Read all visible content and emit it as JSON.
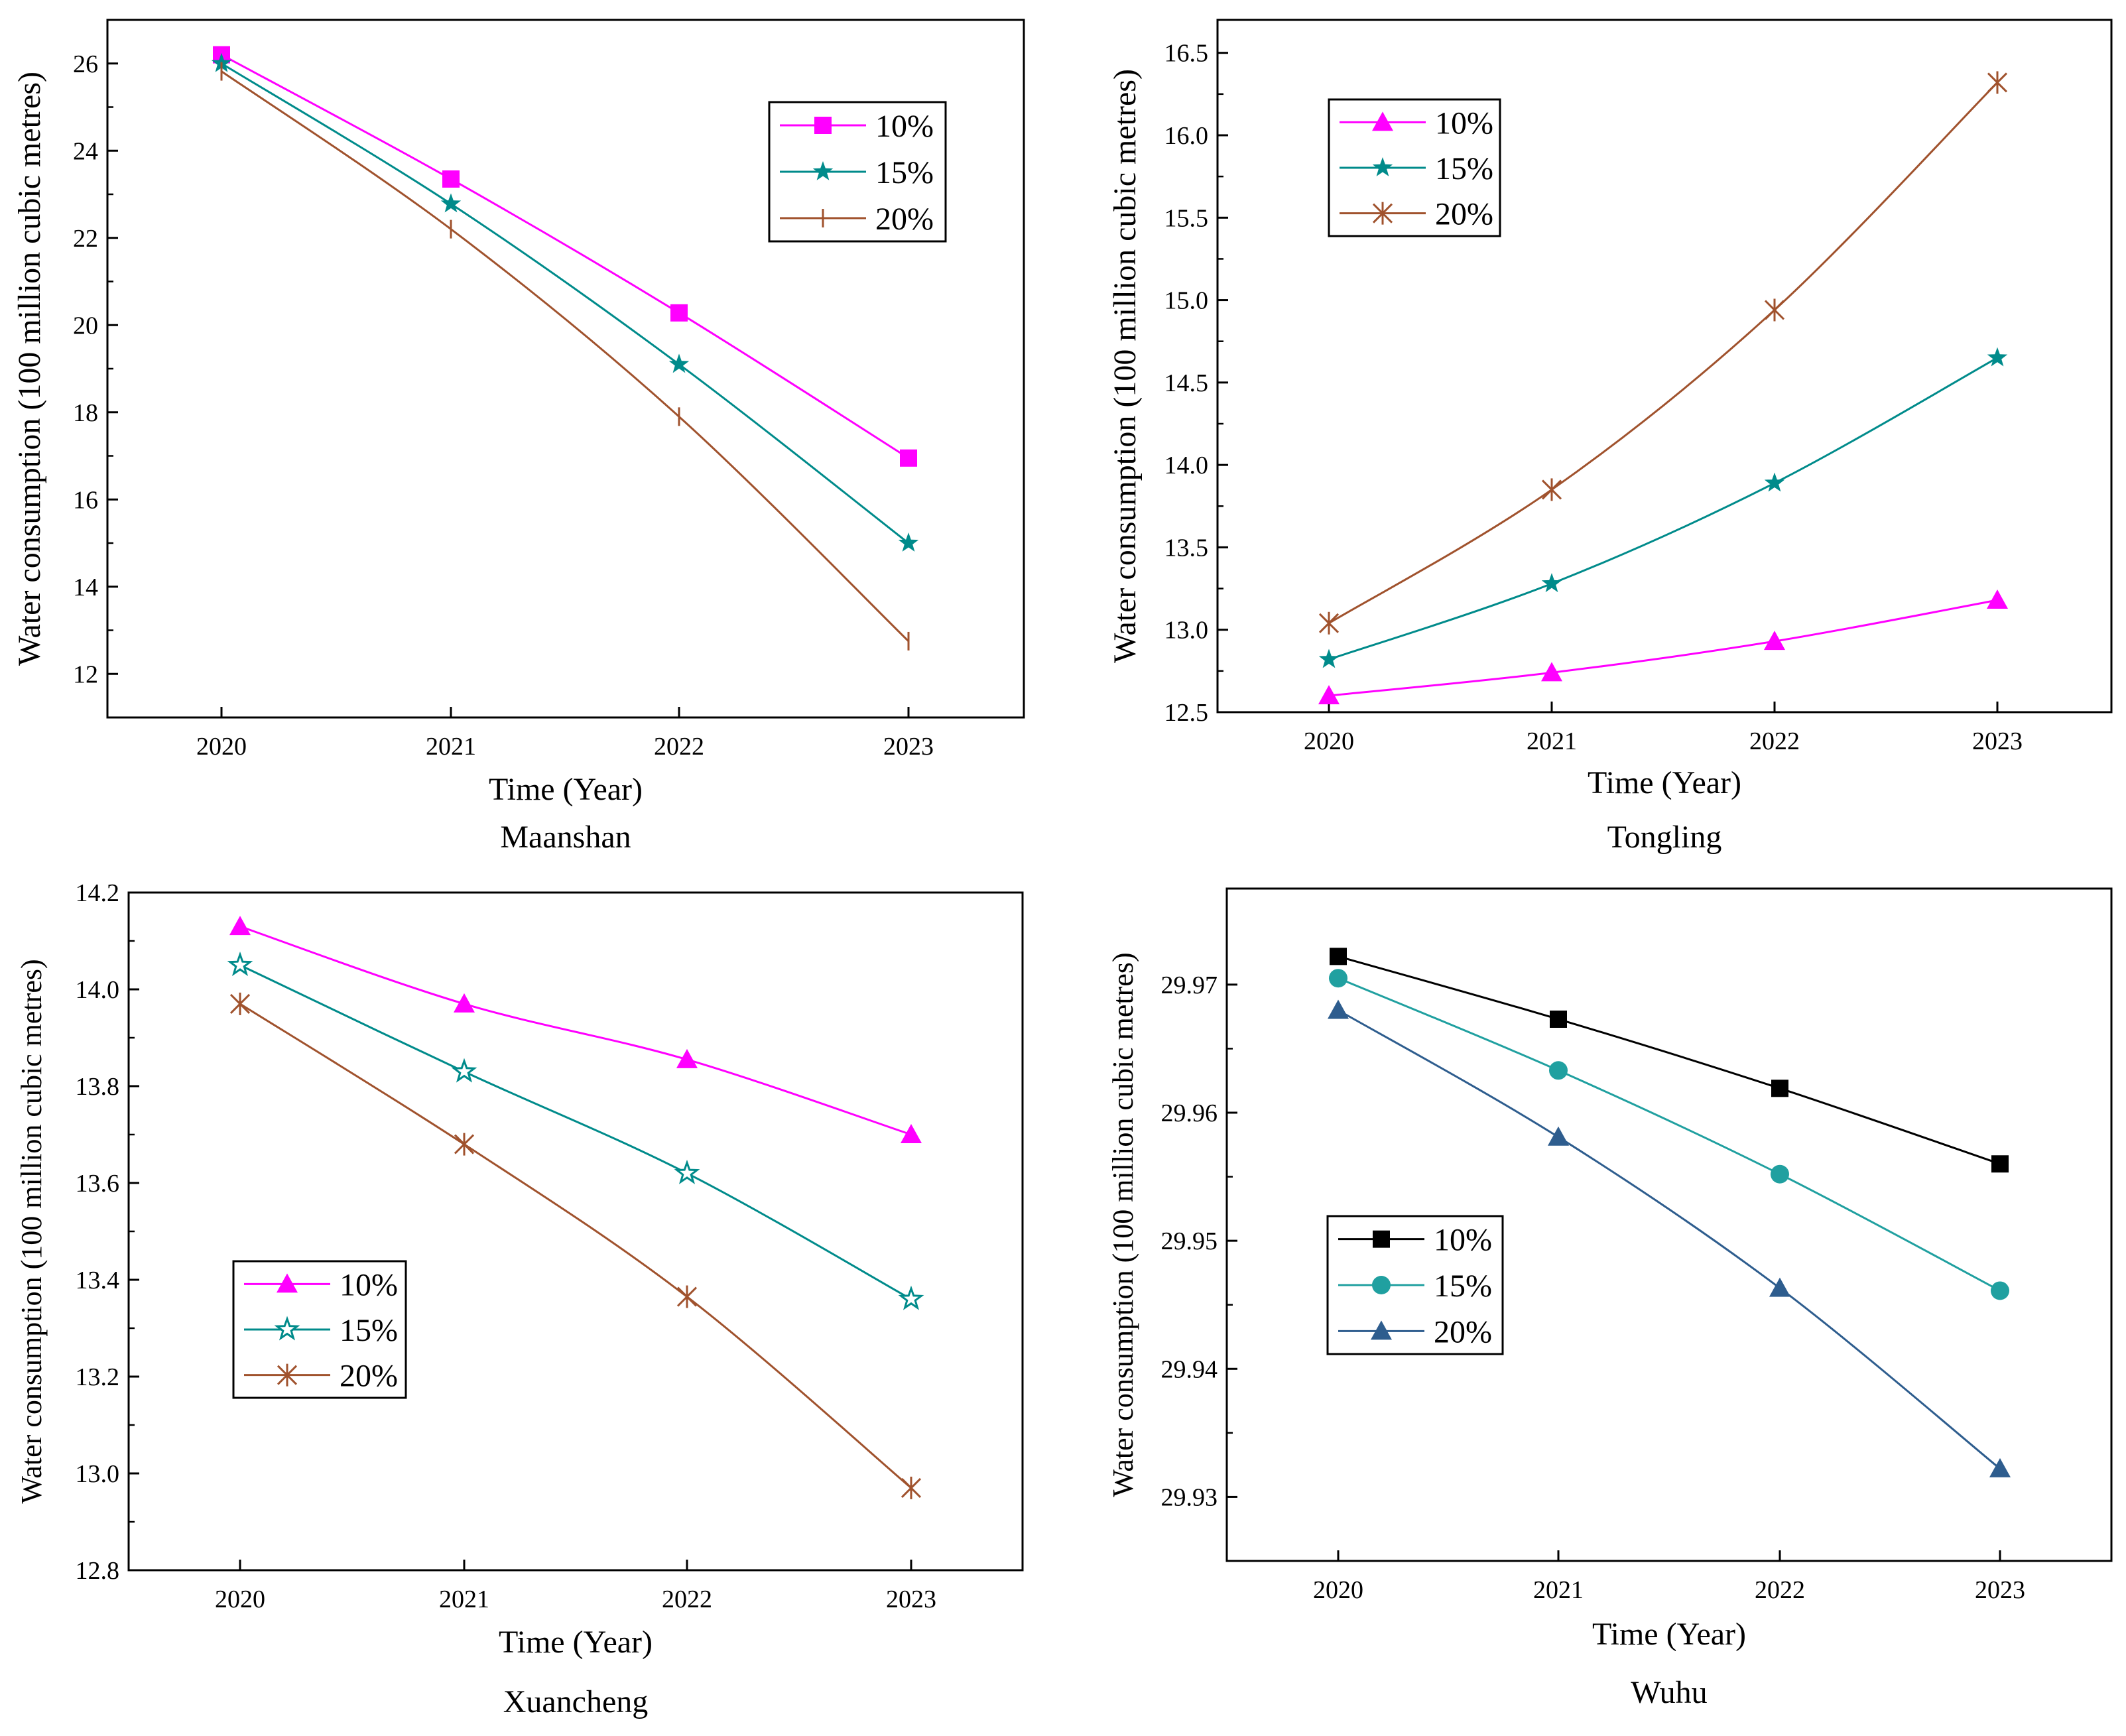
{
  "chart_data": [
    {
      "type": "line",
      "caption": "Maanshan",
      "xlabel": "Time (Year)",
      "ylabel": "Water consumption (100 million cubic metres)",
      "categories": [
        "2020",
        "2021",
        "2022",
        "2023"
      ],
      "ylim": [
        11,
        27
      ],
      "yticks": [
        12,
        14,
        16,
        18,
        20,
        22,
        24,
        26
      ],
      "ytick_labels": [
        "12",
        "14",
        "16",
        "18",
        "20",
        "22",
        "24",
        "26"
      ],
      "legend_position": "top-right",
      "series": [
        {
          "name": "10%",
          "color": "#ff00ff",
          "marker": "square",
          "values": [
            26.2,
            23.35,
            20.28,
            16.95
          ]
        },
        {
          "name": "15%",
          "color": "#008b8b",
          "marker": "star",
          "values": [
            26.0,
            22.78,
            19.1,
            15.0
          ]
        },
        {
          "name": "20%",
          "color": "#a0522d",
          "marker": "vbar",
          "values": [
            25.82,
            22.2,
            17.9,
            12.75
          ]
        }
      ]
    },
    {
      "type": "line",
      "caption": "Tongling",
      "xlabel": "Time (Year)",
      "ylabel": "Water consumption (100 million cubic metres)",
      "categories": [
        "2020",
        "2021",
        "2022",
        "2023"
      ],
      "ylim": [
        12.5,
        16.7
      ],
      "yticks": [
        12.5,
        13.0,
        13.5,
        14.0,
        14.5,
        15.0,
        15.5,
        16.0,
        16.5
      ],
      "ytick_labels": [
        "12.5",
        "13.0",
        "13.5",
        "14.0",
        "14.5",
        "15.0",
        "15.5",
        "16.0",
        "16.5"
      ],
      "legend_position": "top-left",
      "series": [
        {
          "name": "10%",
          "color": "#ff00ff",
          "marker": "triangle",
          "values": [
            12.6,
            12.74,
            12.93,
            13.18
          ]
        },
        {
          "name": "15%",
          "color": "#008b8b",
          "marker": "star",
          "values": [
            12.82,
            13.28,
            13.89,
            14.65
          ]
        },
        {
          "name": "20%",
          "color": "#a0522d",
          "marker": "asterisk",
          "values": [
            13.04,
            13.85,
            14.94,
            16.32
          ]
        }
      ]
    },
    {
      "type": "line",
      "caption": "Xuancheng",
      "xlabel": "Time (Year)",
      "ylabel": "Water consumption (100 million cubic metres)",
      "categories": [
        "2020",
        "2021",
        "2022",
        "2023"
      ],
      "ylim": [
        12.8,
        14.2
      ],
      "yticks": [
        12.8,
        13.0,
        13.2,
        13.4,
        13.6,
        13.8,
        14.0,
        14.2
      ],
      "ytick_labels": [
        "12.8",
        "13.0",
        "13.2",
        "13.4",
        "13.6",
        "13.8",
        "14.0",
        "14.2"
      ],
      "legend_position": "middle-left",
      "series": [
        {
          "name": "10%",
          "color": "#ff00ff",
          "marker": "triangle",
          "values": [
            14.13,
            13.97,
            13.855,
            13.7
          ]
        },
        {
          "name": "15%",
          "color": "#008b8b",
          "marker": "star-open",
          "values": [
            14.05,
            13.83,
            13.62,
            13.36
          ]
        },
        {
          "name": "20%",
          "color": "#a0522d",
          "marker": "asterisk",
          "values": [
            13.97,
            13.68,
            13.365,
            12.97
          ]
        }
      ]
    },
    {
      "type": "line",
      "caption": "Wuhu",
      "xlabel": "Time (Year)",
      "ylabel": "Water consumption (100 million cubic metres)",
      "categories": [
        "2020",
        "2021",
        "2022",
        "2023"
      ],
      "ylim": [
        29.925,
        29.9775
      ],
      "yticks": [
        29.93,
        29.94,
        29.95,
        29.96,
        29.97
      ],
      "ytick_labels": [
        "29.93",
        "29.94",
        "29.95",
        "29.96",
        "29.97"
      ],
      "legend_position": "middle-left",
      "series": [
        {
          "name": "10%",
          "color": "#000000",
          "marker": "square",
          "values": [
            29.9722,
            29.9673,
            29.9619,
            29.956
          ]
        },
        {
          "name": "15%",
          "color": "#20a0a0",
          "marker": "circle",
          "values": [
            29.9705,
            29.9633,
            29.9552,
            29.9461
          ]
        },
        {
          "name": "20%",
          "color": "#2e5d8e",
          "marker": "triangle",
          "values": [
            29.968,
            29.9581,
            29.9463,
            29.9322
          ]
        }
      ]
    }
  ]
}
